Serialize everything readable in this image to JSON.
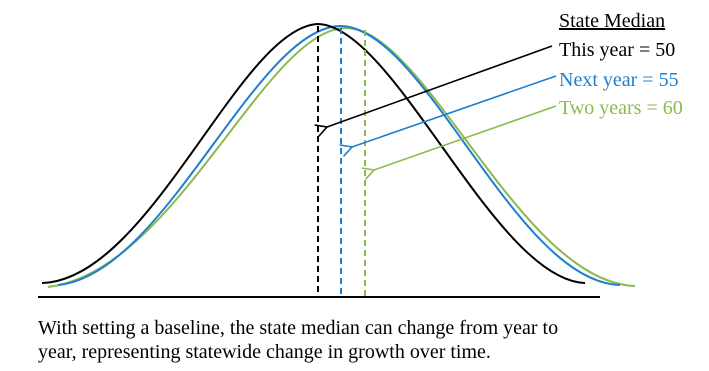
{
  "legend": {
    "heading": "State Median",
    "entries": [
      {
        "key": "this_year",
        "label": "This year = 50",
        "median": 50,
        "color": "#000000"
      },
      {
        "key": "next_year",
        "label": "Next year = 55",
        "median": 55,
        "color": "#1f7fcc"
      },
      {
        "key": "two_years",
        "label": "Two years = 60",
        "median": 60,
        "color": "#8cba4f"
      }
    ]
  },
  "caption": {
    "line1": "With setting a baseline, the state median can change from year to",
    "line2": "year, representing statewide change in growth over time."
  }
}
